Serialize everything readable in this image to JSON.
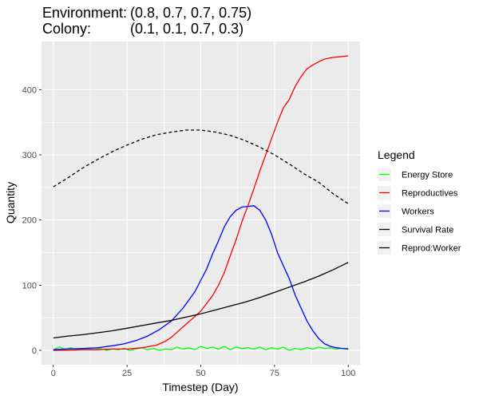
{
  "title": {
    "line1_label": "Environment:",
    "line1_value": "(0.8, 0.7, 0.7, 0.75)",
    "line2_label": "Colony:",
    "line2_value": "(0.1, 0.1, 0.7, 0.3)"
  },
  "chart_data": {
    "type": "line",
    "xlabel": "Timestep (Day)",
    "ylabel": "Quantity",
    "xlim": [
      -4,
      104
    ],
    "ylim": [
      -22,
      474
    ],
    "x_ticks": [
      0,
      25,
      50,
      75,
      100
    ],
    "y_ticks": [
      0,
      100,
      200,
      300,
      400
    ],
    "grid": true,
    "legend_title": "Legend",
    "legend_position": "right",
    "series": [
      {
        "name": "Energy Store",
        "color": "#00ff00",
        "dash": "solid",
        "x": [
          0,
          2,
          4,
          6,
          8,
          10,
          12,
          14,
          16,
          18,
          20,
          22,
          24,
          26,
          28,
          30,
          32,
          34,
          36,
          38,
          40,
          42,
          44,
          46,
          48,
          50,
          52,
          54,
          56,
          58,
          60,
          62,
          64,
          66,
          68,
          70,
          72,
          74,
          76,
          78,
          80,
          82,
          84,
          86,
          88,
          90,
          92,
          94,
          96,
          98,
          100
        ],
        "y": [
          1,
          5,
          2,
          4,
          1,
          3,
          2,
          1,
          3,
          0,
          2,
          1,
          3,
          0,
          2,
          4,
          1,
          3,
          0,
          2,
          1,
          5,
          2,
          4,
          1,
          6,
          3,
          5,
          2,
          6,
          1,
          5,
          3,
          4,
          2,
          5,
          1,
          4,
          2,
          5,
          0,
          3,
          1,
          4,
          2,
          5,
          3,
          4,
          2,
          3,
          3
        ]
      },
      {
        "name": "Reproductives",
        "color": "#ff0000",
        "dash": "solid",
        "x": [
          0,
          5,
          10,
          15,
          20,
          25,
          30,
          35,
          38,
          40,
          42,
          44,
          46,
          48,
          50,
          52,
          54,
          56,
          58,
          60,
          62,
          64,
          66,
          68,
          70,
          72,
          74,
          76,
          78,
          80,
          82,
          84,
          86,
          88,
          90,
          92,
          94,
          96,
          98,
          100
        ],
        "y": [
          0,
          0,
          1,
          1,
          2,
          2,
          4,
          8,
          14,
          20,
          28,
          36,
          44,
          52,
          60,
          72,
          84,
          100,
          120,
          145,
          170,
          198,
          222,
          248,
          275,
          300,
          325,
          350,
          372,
          385,
          405,
          420,
          432,
          438,
          443,
          447,
          449,
          450,
          451,
          452
        ]
      },
      {
        "name": "Workers",
        "color": "#0000ff",
        "dash": "solid",
        "x": [
          0,
          5,
          10,
          15,
          20,
          24,
          28,
          32,
          36,
          40,
          44,
          48,
          52,
          54,
          56,
          58,
          60,
          62,
          64,
          66,
          68,
          70,
          72,
          74,
          76,
          78,
          80,
          82,
          84,
          86,
          88,
          90,
          92,
          94,
          96,
          98,
          100
        ],
        "y": [
          1,
          2,
          3,
          4,
          7,
          10,
          15,
          22,
          32,
          45,
          65,
          90,
          125,
          148,
          168,
          190,
          205,
          215,
          220,
          221,
          222,
          215,
          200,
          178,
          150,
          130,
          110,
          85,
          65,
          45,
          30,
          18,
          10,
          6,
          4,
          3,
          2
        ]
      },
      {
        "name": "Survival Rate",
        "color": "#000000",
        "dash": "dashed",
        "x": [
          0,
          5,
          10,
          15,
          20,
          25,
          30,
          35,
          40,
          45,
          50,
          55,
          60,
          65,
          70,
          75,
          80,
          85,
          90,
          95,
          100
        ],
        "y": [
          251,
          265,
          280,
          293,
          305,
          315,
          324,
          331,
          335,
          338,
          338,
          335,
          330,
          322,
          312,
          300,
          286,
          271,
          258,
          240,
          225
        ]
      },
      {
        "name": "Reprod:Worker",
        "color": "#000000",
        "dash": "solid",
        "x": [
          0,
          5,
          10,
          15,
          20,
          25,
          30,
          35,
          40,
          45,
          50,
          55,
          60,
          65,
          70,
          75,
          80,
          85,
          90,
          95,
          100
        ],
        "y": [
          19,
          22,
          24,
          27,
          30,
          34,
          38,
          42,
          46,
          51,
          56,
          62,
          68,
          74,
          81,
          89,
          97,
          105,
          114,
          124,
          135
        ]
      }
    ]
  }
}
